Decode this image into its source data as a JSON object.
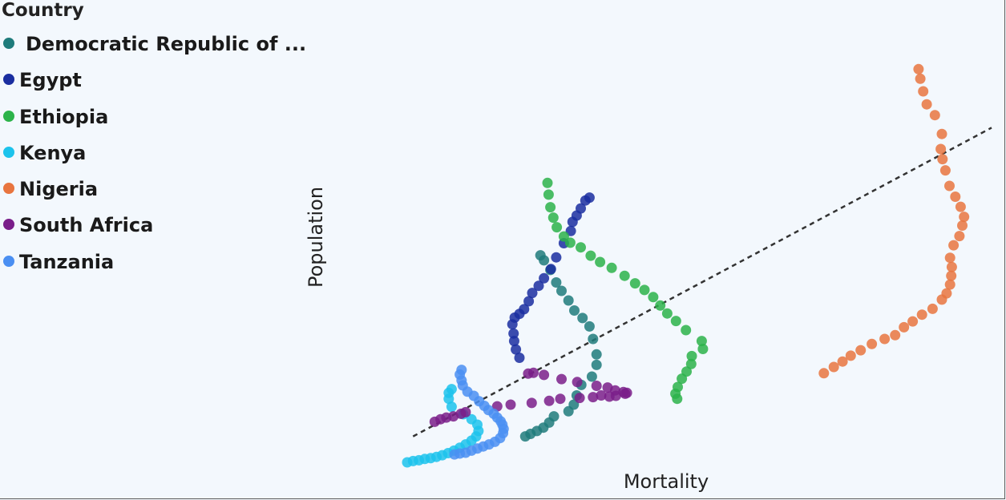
{
  "chart_data": {
    "type": "scatter",
    "title": "",
    "xlabel": "Mortality",
    "ylabel": "Population",
    "xlim": [
      0,
      100
    ],
    "ylim": [
      0,
      100
    ],
    "legend_title": "Country",
    "legend_position": "top-left",
    "grid": false,
    "trendline": {
      "style": "dashed",
      "color": "#333333",
      "from": [
        1.0,
        6.2
      ],
      "to": [
        100.0,
        80.0
      ]
    },
    "series": [
      {
        "name": "Democratic Republic of ...",
        "color": "#1e7b7b",
        "points": [
          [
            20.2,
            6.2
          ],
          [
            21.1,
            6.8
          ],
          [
            22.2,
            7.5
          ],
          [
            23.3,
            8.3
          ],
          [
            24.3,
            9.5
          ],
          [
            25.1,
            11.0
          ],
          [
            27.6,
            12.2
          ],
          [
            28.5,
            13.8
          ],
          [
            29.0,
            16.0
          ],
          [
            29.8,
            18.5
          ],
          [
            31.6,
            20.5
          ],
          [
            32.4,
            23.3
          ],
          [
            32.4,
            25.8
          ],
          [
            31.8,
            29.5
          ],
          [
            31.2,
            32.5
          ],
          [
            30.0,
            34.5
          ],
          [
            28.6,
            36.3
          ],
          [
            27.6,
            38.7
          ],
          [
            26.4,
            41.0
          ],
          [
            25.5,
            43.0
          ],
          [
            24.5,
            46.0
          ],
          [
            23.4,
            48.3
          ],
          [
            22.8,
            49.5
          ]
        ]
      },
      {
        "name": "Egypt",
        "color": "#1a2ea0",
        "points": [
          [
            19.2,
            25.0
          ],
          [
            18.6,
            27.0
          ],
          [
            18.3,
            29.0
          ],
          [
            18.2,
            30.8
          ],
          [
            18.0,
            33.0
          ],
          [
            18.4,
            34.6
          ],
          [
            19.2,
            35.5
          ],
          [
            20.0,
            36.6
          ],
          [
            20.8,
            38.5
          ],
          [
            21.4,
            40.5
          ],
          [
            22.5,
            42.2
          ],
          [
            23.4,
            44.0
          ],
          [
            24.6,
            46.2
          ],
          [
            25.5,
            49.0
          ],
          [
            26.8,
            52.4
          ],
          [
            28.0,
            55.3
          ],
          [
            28.3,
            57.5
          ],
          [
            29.0,
            59.0
          ],
          [
            29.7,
            60.7
          ],
          [
            30.5,
            62.6
          ],
          [
            31.2,
            63.3
          ]
        ]
      },
      {
        "name": "Ethiopia",
        "color": "#2cb34a",
        "points": [
          [
            24.0,
            66.8
          ],
          [
            24.2,
            64.0
          ],
          [
            24.5,
            61.0
          ],
          [
            25.0,
            58.5
          ],
          [
            25.6,
            56.2
          ],
          [
            26.8,
            54.0
          ],
          [
            27.9,
            52.5
          ],
          [
            29.7,
            51.4
          ],
          [
            31.4,
            49.4
          ],
          [
            33.0,
            47.9
          ],
          [
            35.0,
            46.5
          ],
          [
            37.2,
            44.6
          ],
          [
            39.0,
            42.8
          ],
          [
            40.6,
            41.2
          ],
          [
            42.1,
            39.5
          ],
          [
            43.3,
            37.5
          ],
          [
            44.5,
            35.6
          ],
          [
            46.0,
            33.8
          ],
          [
            47.7,
            31.6
          ],
          [
            50.4,
            29.0
          ],
          [
            50.6,
            27.1
          ],
          [
            48.7,
            25.4
          ],
          [
            48.6,
            23.5
          ],
          [
            47.8,
            21.7
          ],
          [
            47.0,
            20.0
          ],
          [
            46.3,
            18.0
          ],
          [
            45.9,
            16.4
          ],
          [
            46.2,
            15.2
          ]
        ]
      },
      {
        "name": "Kenya",
        "color": "#1cc3ec",
        "points": [
          [
            0.0,
            0.0
          ],
          [
            1.0,
            0.3
          ],
          [
            2.0,
            0.5
          ],
          [
            3.0,
            0.8
          ],
          [
            4.0,
            1.0
          ],
          [
            5.0,
            1.3
          ],
          [
            6.0,
            1.7
          ],
          [
            7.0,
            2.2
          ],
          [
            8.0,
            2.8
          ],
          [
            9.0,
            3.5
          ],
          [
            10.0,
            4.3
          ],
          [
            11.0,
            5.2
          ],
          [
            11.8,
            6.2
          ],
          [
            12.2,
            7.5
          ],
          [
            12.0,
            9.0
          ],
          [
            11.0,
            10.3
          ],
          [
            9.6,
            11.5
          ],
          [
            7.6,
            13.3
          ],
          [
            7.1,
            15.2
          ],
          [
            7.1,
            16.6
          ],
          [
            7.6,
            17.5
          ]
        ]
      },
      {
        "name": "Nigeria",
        "color": "#e8753f",
        "points": [
          [
            71.3,
            21.3
          ],
          [
            73.0,
            22.8
          ],
          [
            74.5,
            24.1
          ],
          [
            75.9,
            25.5
          ],
          [
            77.6,
            26.8
          ],
          [
            79.5,
            28.3
          ],
          [
            81.7,
            29.5
          ],
          [
            83.5,
            30.4
          ],
          [
            85.0,
            32.3
          ],
          [
            86.5,
            33.7
          ],
          [
            88.1,
            35.3
          ],
          [
            89.9,
            36.7
          ],
          [
            91.5,
            38.9
          ],
          [
            92.3,
            40.4
          ],
          [
            92.9,
            42.5
          ],
          [
            93.1,
            44.6
          ],
          [
            93.2,
            46.7
          ],
          [
            92.9,
            48.9
          ],
          [
            93.5,
            51.9
          ],
          [
            94.5,
            54.1
          ],
          [
            95.0,
            56.6
          ],
          [
            95.3,
            58.7
          ],
          [
            94.7,
            61.1
          ],
          [
            93.8,
            63.5
          ],
          [
            92.8,
            66.1
          ],
          [
            92.1,
            69.8
          ],
          [
            91.6,
            72.5
          ],
          [
            91.3,
            74.9
          ],
          [
            91.5,
            78.5
          ],
          [
            90.3,
            83.0
          ],
          [
            88.9,
            85.6
          ],
          [
            88.3,
            88.7
          ],
          [
            87.8,
            91.7
          ],
          [
            87.5,
            94.0
          ]
        ]
      },
      {
        "name": "South Africa",
        "color": "#7a1e8a",
        "points": [
          [
            4.7,
            9.7
          ],
          [
            5.7,
            10.3
          ],
          [
            6.7,
            10.7
          ],
          [
            7.9,
            11.0
          ],
          [
            9.2,
            11.6
          ],
          [
            10.0,
            12.0
          ],
          [
            15.4,
            13.4
          ],
          [
            17.7,
            13.8
          ],
          [
            21.3,
            14.2
          ],
          [
            24.3,
            14.7
          ],
          [
            26.2,
            15.2
          ],
          [
            29.5,
            15.4
          ],
          [
            31.8,
            15.6
          ],
          [
            33.2,
            16.0
          ],
          [
            34.6,
            15.7
          ],
          [
            35.7,
            15.9
          ],
          [
            37.3,
            16.4
          ],
          [
            37.6,
            16.6
          ],
          [
            37.0,
            16.8
          ],
          [
            35.6,
            17.2
          ],
          [
            34.3,
            17.9
          ],
          [
            32.4,
            18.3
          ],
          [
            29.1,
            19.2
          ],
          [
            26.4,
            19.9
          ],
          [
            23.4,
            20.9
          ],
          [
            21.6,
            21.4
          ],
          [
            20.7,
            21.2
          ]
        ]
      },
      {
        "name": "Tanzania",
        "color": "#4a8ff2",
        "points": [
          [
            8.1,
            1.9
          ],
          [
            9.0,
            2.1
          ],
          [
            10.0,
            2.3
          ],
          [
            11.0,
            2.8
          ],
          [
            12.0,
            3.3
          ],
          [
            13.0,
            3.8
          ],
          [
            14.0,
            4.3
          ],
          [
            15.0,
            4.9
          ],
          [
            15.9,
            5.8
          ],
          [
            16.4,
            7.0
          ],
          [
            16.5,
            8.0
          ],
          [
            16.3,
            9.0
          ],
          [
            16.0,
            9.8
          ],
          [
            15.4,
            10.7
          ],
          [
            14.8,
            11.6
          ],
          [
            13.9,
            12.5
          ],
          [
            13.2,
            13.5
          ],
          [
            12.3,
            14.6
          ],
          [
            11.4,
            15.9
          ],
          [
            10.3,
            16.9
          ],
          [
            9.5,
            18.4
          ],
          [
            9.3,
            19.6
          ],
          [
            9.0,
            21.0
          ],
          [
            9.3,
            22.1
          ]
        ]
      }
    ]
  }
}
